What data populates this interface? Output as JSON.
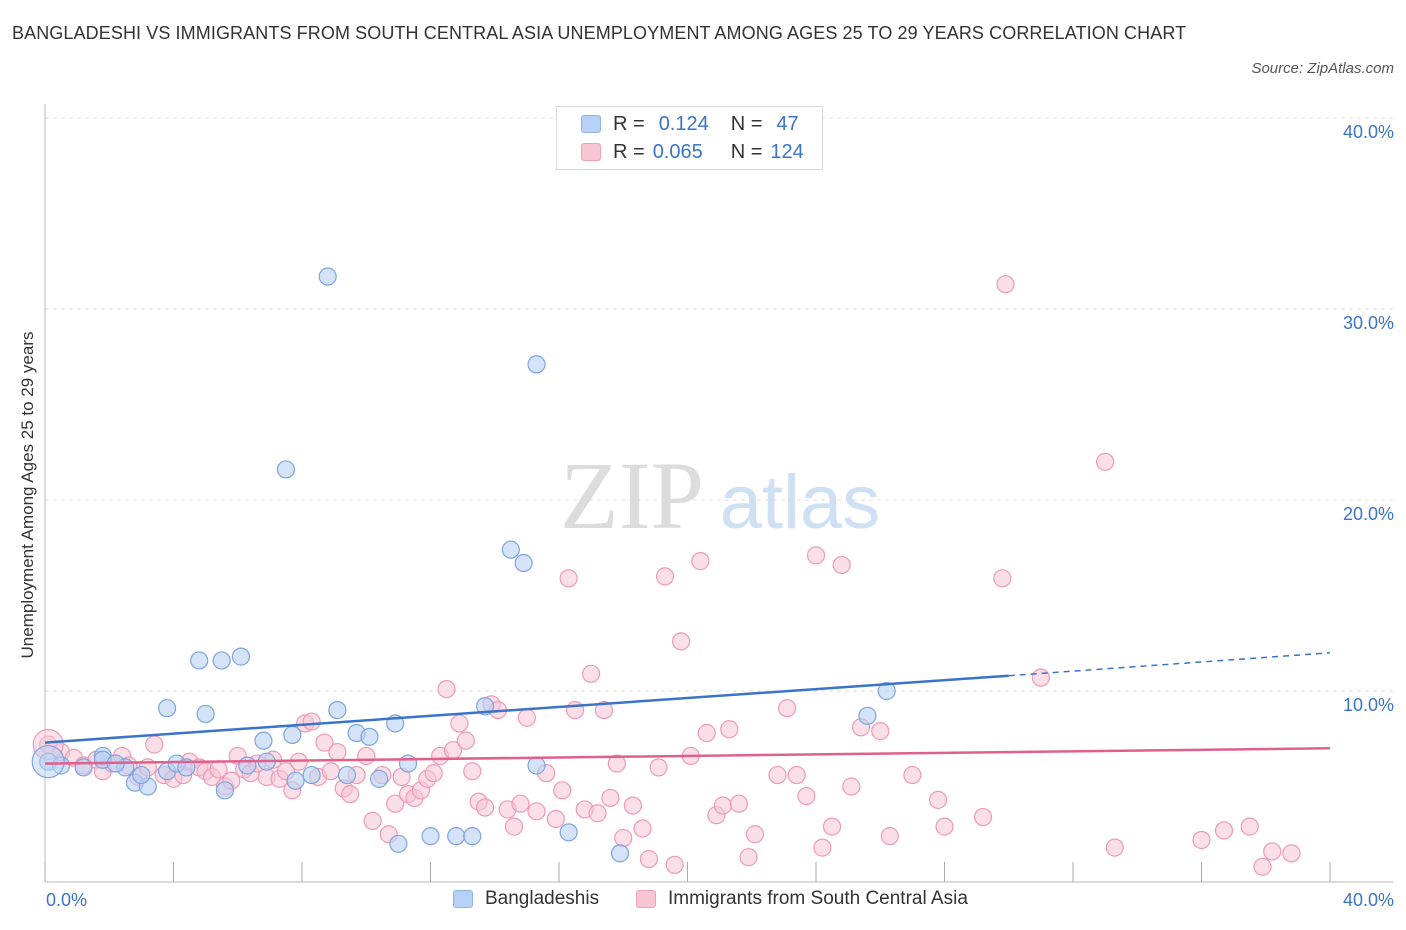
{
  "title": "BANGLADESHI VS IMMIGRANTS FROM SOUTH CENTRAL ASIA UNEMPLOYMENT AMONG AGES 25 TO 29 YEARS CORRELATION CHART",
  "source": "Source: ZipAtlas.com",
  "watermark": {
    "zip": "ZIP",
    "atlas": "atlas"
  },
  "legend": {
    "rows": [
      {
        "r_label": "R =",
        "r_value": "0.124",
        "n_label": "N =",
        "n_value": "47"
      },
      {
        "r_label": "R =",
        "r_value": "0.065",
        "n_label": "N =",
        "n_value": "124"
      }
    ]
  },
  "colors": {
    "blue": "#3a74c9",
    "blue_fill": "#b7d1f4",
    "pink": "#e0608c",
    "pink_fill": "#f8c5d5",
    "grid": "#dddddd"
  },
  "chart_data": {
    "type": "scatter",
    "title": "BANGLADESHI VS IMMIGRANTS FROM SOUTH CENTRAL ASIA UNEMPLOYMENT AMONG AGES 25 TO 29 YEARS CORRELATION CHART",
    "xlabel": "",
    "ylabel": "Unemployment Among Ages 25 to 29 years",
    "xlim": [
      0,
      40
    ],
    "ylim": [
      0,
      40
    ],
    "x_tick_labels": [
      "0.0%",
      "40.0%"
    ],
    "y_tick_labels": [
      "10.0%",
      "20.0%",
      "30.0%",
      "40.0%"
    ],
    "y_ticks": [
      10,
      20,
      30,
      40
    ],
    "grid": true,
    "legend_position": "bottom",
    "series": [
      {
        "name": "Bangladeshis",
        "color": "#3a74c9",
        "trend": {
          "x": [
            0,
            30
          ],
          "y": [
            7.3,
            10.8
          ],
          "dashed_to": [
            40,
            12.0
          ]
        },
        "points": [
          [
            0.1,
            6.3
          ],
          [
            0.5,
            6.1
          ],
          [
            1.2,
            6.0
          ],
          [
            1.8,
            6.6
          ],
          [
            2.5,
            6.0
          ],
          [
            2.8,
            5.2
          ],
          [
            3.2,
            5.0
          ],
          [
            3.8,
            5.8
          ],
          [
            3.8,
            9.1
          ],
          [
            4.1,
            6.2
          ],
          [
            4.4,
            6.0
          ],
          [
            4.8,
            11.6
          ],
          [
            5.0,
            8.8
          ],
          [
            5.5,
            11.6
          ],
          [
            5.6,
            4.8
          ],
          [
            6.1,
            11.8
          ],
          [
            6.3,
            6.1
          ],
          [
            6.8,
            7.4
          ],
          [
            6.9,
            6.3
          ],
          [
            7.5,
            21.6
          ],
          [
            7.7,
            7.7
          ],
          [
            7.8,
            5.3
          ],
          [
            8.3,
            5.6
          ],
          [
            8.8,
            31.7
          ],
          [
            9.1,
            9.0
          ],
          [
            9.4,
            5.6
          ],
          [
            9.7,
            7.8
          ],
          [
            10.1,
            7.6
          ],
          [
            10.4,
            5.4
          ],
          [
            10.9,
            8.3
          ],
          [
            11.0,
            2.0
          ],
          [
            11.3,
            6.2
          ],
          [
            12.0,
            2.4
          ],
          [
            12.8,
            2.4
          ],
          [
            13.3,
            2.4
          ],
          [
            13.7,
            9.2
          ],
          [
            14.5,
            17.4
          ],
          [
            14.9,
            16.7
          ],
          [
            15.3,
            27.1
          ],
          [
            15.3,
            6.1
          ],
          [
            16.3,
            2.6
          ],
          [
            17.9,
            1.5
          ],
          [
            25.6,
            8.7
          ],
          [
            26.2,
            10.0
          ],
          [
            3.0,
            5.6
          ],
          [
            1.8,
            6.4
          ],
          [
            2.2,
            6.2
          ]
        ]
      },
      {
        "name": "Immigrants from South Central Asia",
        "color": "#e0608c",
        "trend": {
          "x": [
            0,
            40
          ],
          "y": [
            6.2,
            7.0
          ]
        },
        "points": [
          [
            0.1,
            7.2
          ],
          [
            0.5,
            6.8
          ],
          [
            0.9,
            6.5
          ],
          [
            1.2,
            6.1
          ],
          [
            1.6,
            6.4
          ],
          [
            1.8,
            5.8
          ],
          [
            2.1,
            6.2
          ],
          [
            2.4,
            6.6
          ],
          [
            2.6,
            6.1
          ],
          [
            2.9,
            5.5
          ],
          [
            3.2,
            6.0
          ],
          [
            3.4,
            7.2
          ],
          [
            3.7,
            5.6
          ],
          [
            4.0,
            5.4
          ],
          [
            4.3,
            5.6
          ],
          [
            4.5,
            6.3
          ],
          [
            4.8,
            6.0
          ],
          [
            5.0,
            5.8
          ],
          [
            5.2,
            5.5
          ],
          [
            5.4,
            5.9
          ],
          [
            5.6,
            5.0
          ],
          [
            5.8,
            5.3
          ],
          [
            6.0,
            6.6
          ],
          [
            6.2,
            5.9
          ],
          [
            6.4,
            5.7
          ],
          [
            6.6,
            6.2
          ],
          [
            6.9,
            5.5
          ],
          [
            7.1,
            6.4
          ],
          [
            7.3,
            5.4
          ],
          [
            7.5,
            5.8
          ],
          [
            7.7,
            4.8
          ],
          [
            7.9,
            6.3
          ],
          [
            8.1,
            8.3
          ],
          [
            8.3,
            8.4
          ],
          [
            8.5,
            5.5
          ],
          [
            8.7,
            7.3
          ],
          [
            8.9,
            5.8
          ],
          [
            9.1,
            6.8
          ],
          [
            9.3,
            4.9
          ],
          [
            9.5,
            4.6
          ],
          [
            9.7,
            5.6
          ],
          [
            10.0,
            6.6
          ],
          [
            10.2,
            3.2
          ],
          [
            10.5,
            5.6
          ],
          [
            10.7,
            2.5
          ],
          [
            10.9,
            4.1
          ],
          [
            11.1,
            5.5
          ],
          [
            11.3,
            4.6
          ],
          [
            11.5,
            4.4
          ],
          [
            11.7,
            4.8
          ],
          [
            11.9,
            5.4
          ],
          [
            12.1,
            5.7
          ],
          [
            12.3,
            6.6
          ],
          [
            12.5,
            10.1
          ],
          [
            12.7,
            6.9
          ],
          [
            12.9,
            8.3
          ],
          [
            13.1,
            7.4
          ],
          [
            13.3,
            5.8
          ],
          [
            13.5,
            4.2
          ],
          [
            13.7,
            3.9
          ],
          [
            13.9,
            9.3
          ],
          [
            14.1,
            9.0
          ],
          [
            14.4,
            3.8
          ],
          [
            14.6,
            2.9
          ],
          [
            14.8,
            4.1
          ],
          [
            15.0,
            8.6
          ],
          [
            15.3,
            3.7
          ],
          [
            15.6,
            5.7
          ],
          [
            15.9,
            3.3
          ],
          [
            16.1,
            4.8
          ],
          [
            16.3,
            15.9
          ],
          [
            16.5,
            9.0
          ],
          [
            16.8,
            3.8
          ],
          [
            17.0,
            10.9
          ],
          [
            17.2,
            3.6
          ],
          [
            17.4,
            9.0
          ],
          [
            17.6,
            4.4
          ],
          [
            17.8,
            6.2
          ],
          [
            18.0,
            2.3
          ],
          [
            18.3,
            4.0
          ],
          [
            18.6,
            2.8
          ],
          [
            18.8,
            1.2
          ],
          [
            19.1,
            6.0
          ],
          [
            19.3,
            16.0
          ],
          [
            19.6,
            0.9
          ],
          [
            19.8,
            12.6
          ],
          [
            20.1,
            6.6
          ],
          [
            20.4,
            16.8
          ],
          [
            20.6,
            7.8
          ],
          [
            20.9,
            3.5
          ],
          [
            21.1,
            4.0
          ],
          [
            21.3,
            8.0
          ],
          [
            21.6,
            4.1
          ],
          [
            21.9,
            1.3
          ],
          [
            22.1,
            2.5
          ],
          [
            22.8,
            5.6
          ],
          [
            23.1,
            9.1
          ],
          [
            23.4,
            5.6
          ],
          [
            23.7,
            4.5
          ],
          [
            24.0,
            17.1
          ],
          [
            24.2,
            1.8
          ],
          [
            24.5,
            2.9
          ],
          [
            24.8,
            16.6
          ],
          [
            25.1,
            5.0
          ],
          [
            25.4,
            8.1
          ],
          [
            26.0,
            7.9
          ],
          [
            26.3,
            2.4
          ],
          [
            27.0,
            5.6
          ],
          [
            27.8,
            4.3
          ],
          [
            28.0,
            2.9
          ],
          [
            29.2,
            3.4
          ],
          [
            29.8,
            15.9
          ],
          [
            29.9,
            31.3
          ],
          [
            31.0,
            10.7
          ],
          [
            33.0,
            22.0
          ],
          [
            33.3,
            1.8
          ],
          [
            36.0,
            2.2
          ],
          [
            36.7,
            2.7
          ],
          [
            37.5,
            2.9
          ],
          [
            37.9,
            0.8
          ],
          [
            38.2,
            1.6
          ],
          [
            38.8,
            1.5
          ]
        ]
      }
    ]
  }
}
